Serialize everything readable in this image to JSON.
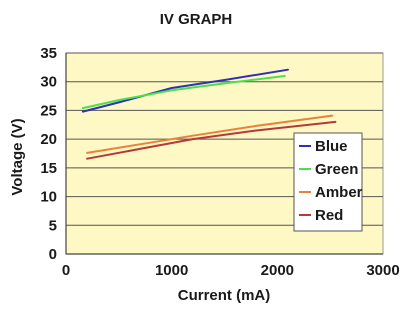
{
  "chart_data": {
    "type": "line",
    "title": "IV GRAPH",
    "xlabel": "Current (mA)",
    "ylabel": "Voltage (V)",
    "xlim": [
      0,
      3000
    ],
    "ylim": [
      0,
      35
    ],
    "x_ticks": [
      "0",
      "1000",
      "2000",
      "3000"
    ],
    "y_ticks": [
      "0",
      "5",
      "10",
      "15",
      "20",
      "25",
      "30",
      "35"
    ],
    "grid": "horizontal",
    "plot_background": "#fdf8c4",
    "legend_position": "right",
    "series": [
      {
        "name": "Blue",
        "color": "#3030b8",
        "points": [
          [
            160,
            24.8
          ],
          [
            500,
            26.4
          ],
          [
            1000,
            28.9
          ],
          [
            1500,
            30.3
          ],
          [
            2100,
            32.1
          ]
        ]
      },
      {
        "name": "Green",
        "color": "#4de04d",
        "points": [
          [
            160,
            25.4
          ],
          [
            500,
            26.8
          ],
          [
            1000,
            28.5
          ],
          [
            1500,
            29.7
          ],
          [
            2070,
            31.0
          ]
        ]
      },
      {
        "name": "Amber",
        "color": "#e8823a",
        "points": [
          [
            200,
            17.6
          ],
          [
            700,
            19.1
          ],
          [
            1200,
            20.6
          ],
          [
            1800,
            22.3
          ],
          [
            2520,
            24.1
          ]
        ]
      },
      {
        "name": "Red",
        "color": "#b83838",
        "points": [
          [
            200,
            16.6
          ],
          [
            700,
            18.3
          ],
          [
            1200,
            20.0
          ],
          [
            1800,
            21.5
          ],
          [
            2550,
            23.0
          ]
        ]
      }
    ]
  }
}
